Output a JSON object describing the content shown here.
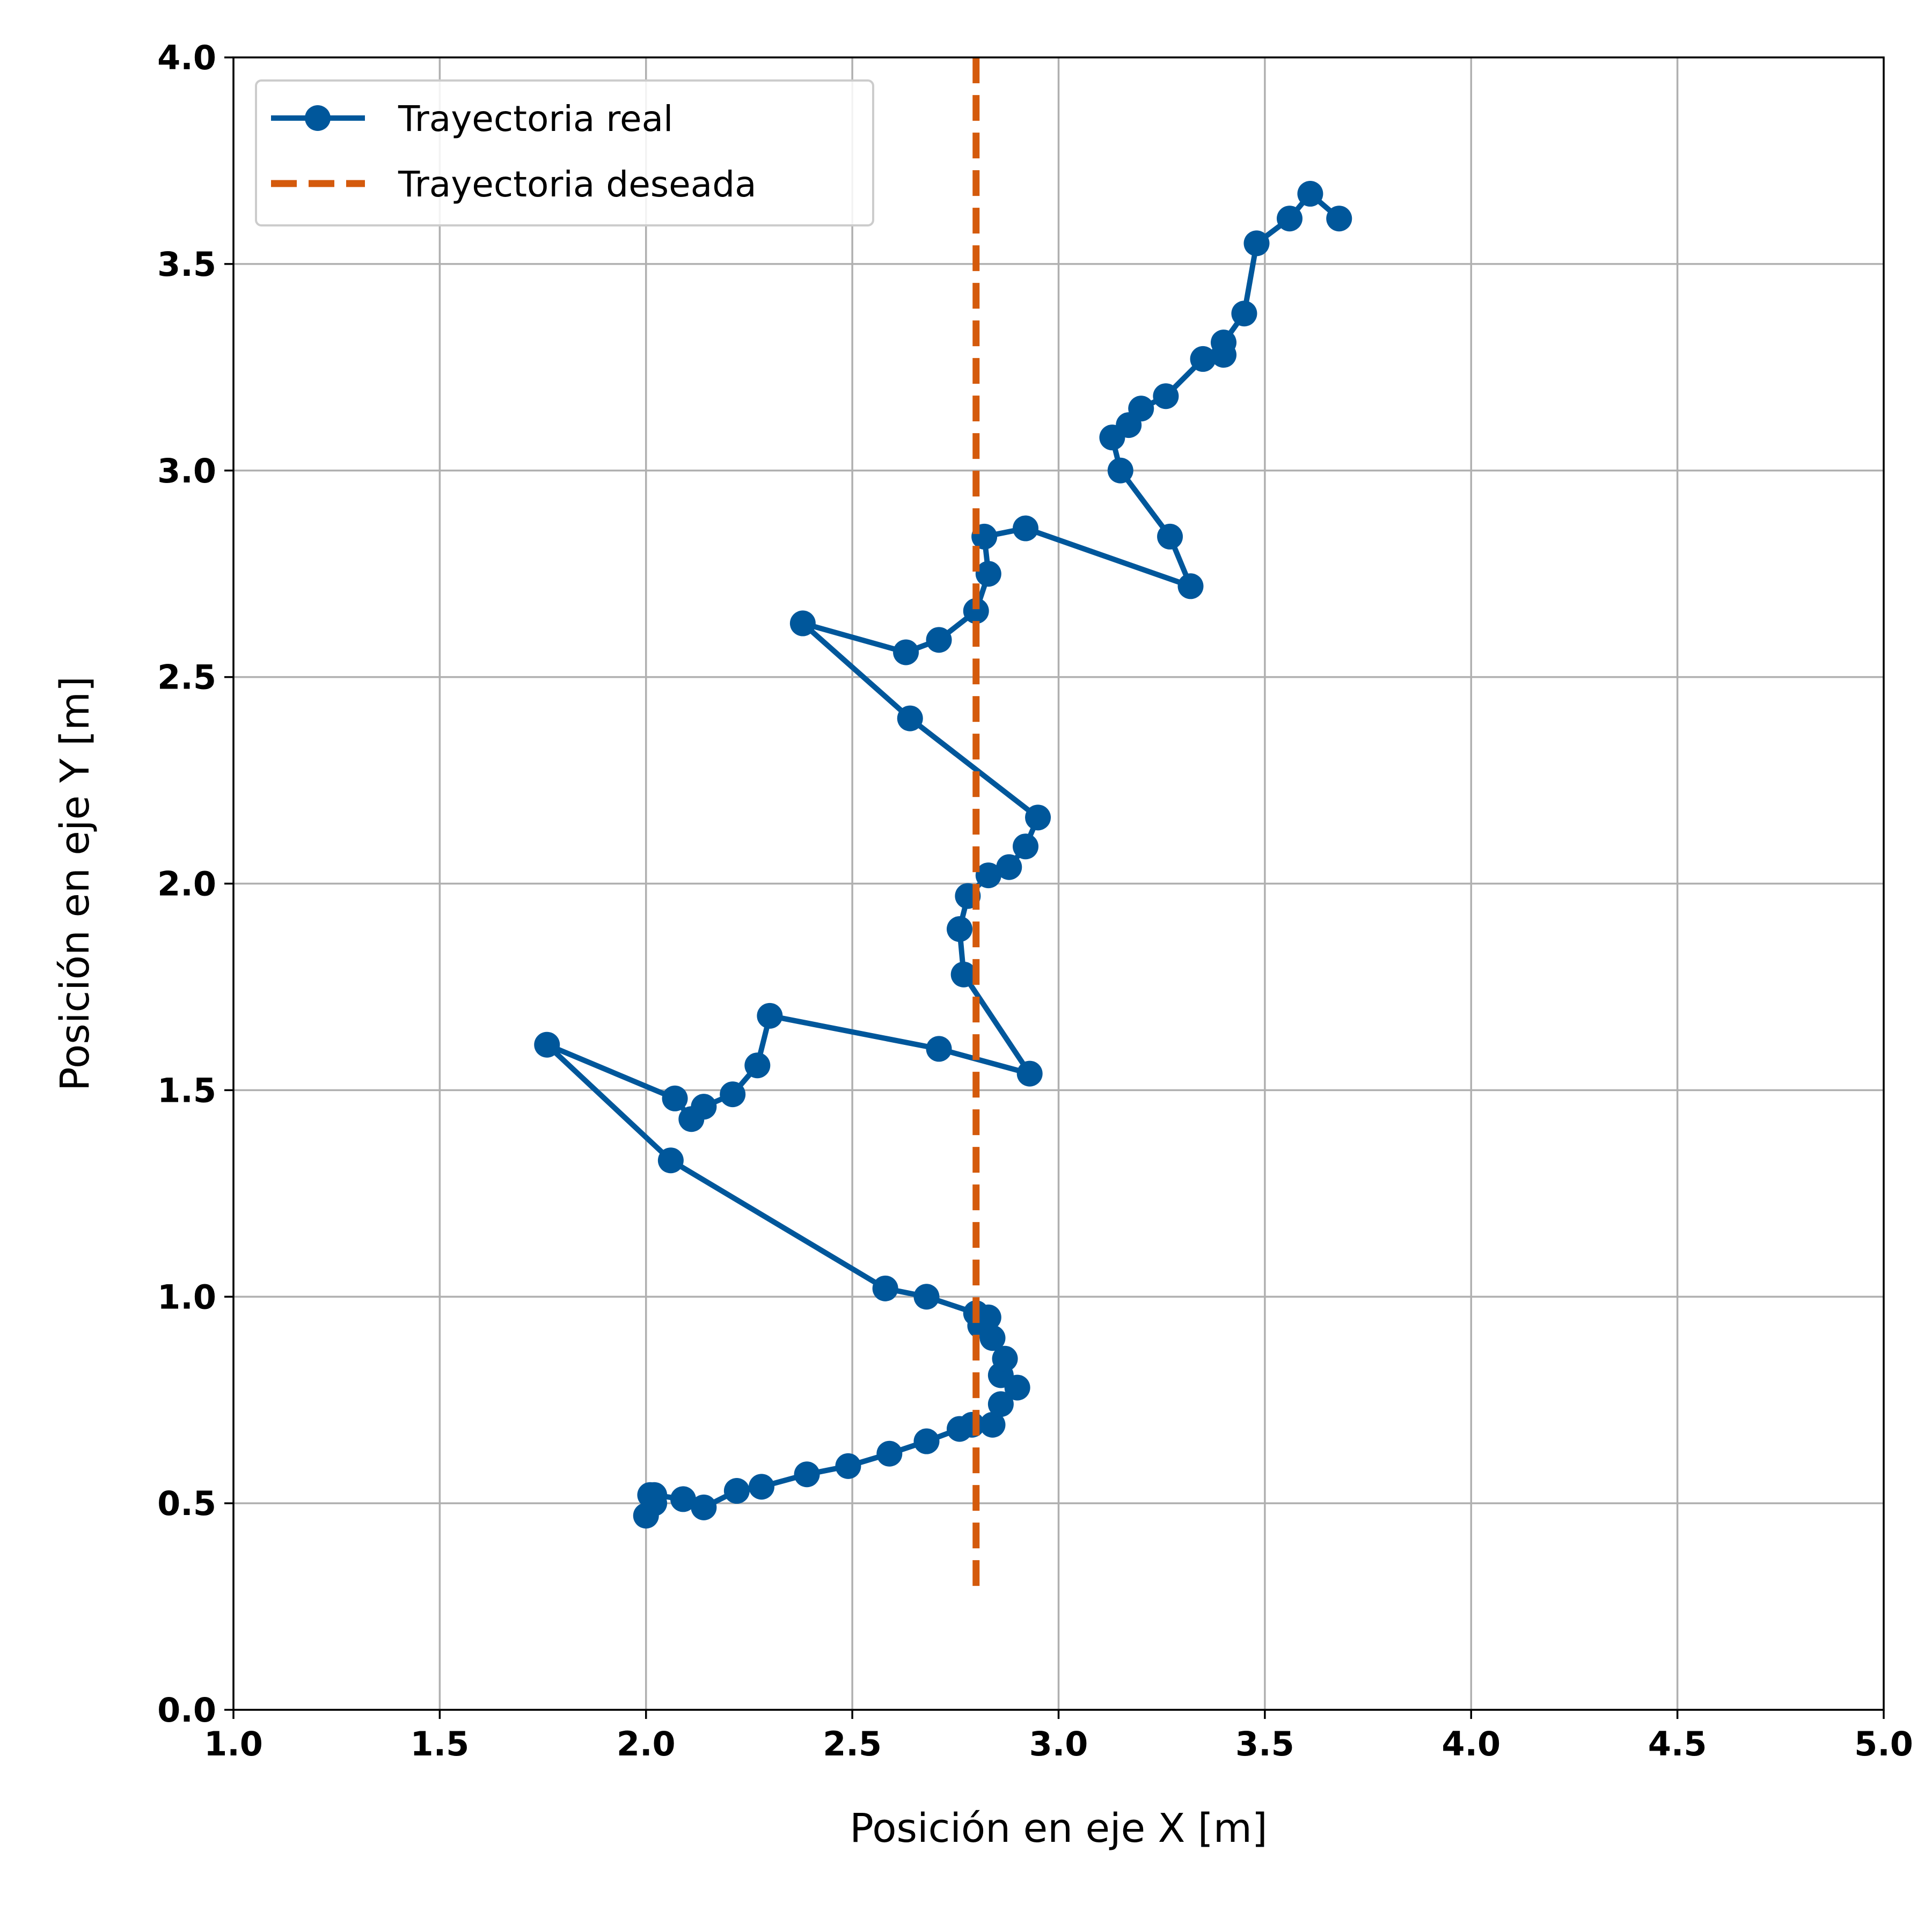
{
  "chart_data": {
    "type": "line",
    "xlabel": "Posición en eje X [m]",
    "ylabel": "Posición en eje Y [m]",
    "xlim": [
      1.0,
      5.0
    ],
    "ylim": [
      0.0,
      4.0
    ],
    "xticks": [
      "1.0",
      "1.5",
      "2.0",
      "2.5",
      "3.0",
      "3.5",
      "4.0",
      "4.5",
      "5.0"
    ],
    "yticks": [
      "0.0",
      "0.5",
      "1.0",
      "1.5",
      "2.0",
      "2.5",
      "3.0",
      "3.5",
      "4.0"
    ],
    "grid": true,
    "legend_position": "top-left",
    "series": [
      {
        "name": "Trayectoria real",
        "style": "solid-with-markers",
        "color": "#00579b",
        "x": [
          2.0,
          2.02,
          2.01,
          2.02,
          2.09,
          2.14,
          2.22,
          2.28,
          2.39,
          2.49,
          2.59,
          2.68,
          2.76,
          2.79,
          2.84,
          2.86,
          2.9,
          2.86,
          2.87,
          2.84,
          2.81,
          2.83,
          2.8,
          2.68,
          2.58,
          2.06,
          1.76,
          2.07,
          2.11,
          2.14,
          2.21,
          2.27,
          2.3,
          2.71,
          2.93,
          2.77,
          2.76,
          2.78,
          2.83,
          2.88,
          2.92,
          2.95,
          2.64,
          2.38,
          2.63,
          2.71,
          2.8,
          2.83,
          2.82,
          2.92,
          3.32,
          3.27,
          3.15,
          3.13,
          3.17,
          3.2,
          3.26,
          3.35,
          3.4,
          3.4,
          3.45,
          3.48,
          3.56,
          3.61,
          3.68
        ],
        "y": [
          0.47,
          0.5,
          0.52,
          0.52,
          0.51,
          0.49,
          0.53,
          0.54,
          0.57,
          0.59,
          0.62,
          0.65,
          0.68,
          0.69,
          0.69,
          0.74,
          0.78,
          0.81,
          0.85,
          0.9,
          0.93,
          0.95,
          0.96,
          1.0,
          1.02,
          1.33,
          1.61,
          1.48,
          1.43,
          1.46,
          1.49,
          1.56,
          1.68,
          1.6,
          1.54,
          1.78,
          1.89,
          1.97,
          2.02,
          2.04,
          2.09,
          2.16,
          2.4,
          2.63,
          2.56,
          2.59,
          2.66,
          2.75,
          2.84,
          2.86,
          2.72,
          2.84,
          3.0,
          3.08,
          3.11,
          3.15,
          3.18,
          3.27,
          3.28,
          3.31,
          3.38,
          3.55,
          3.61,
          3.67,
          3.61
        ]
      },
      {
        "name": "Trayectoria deseada",
        "style": "dashed",
        "color": "#d45a0c",
        "x": [
          2.8,
          2.8
        ],
        "y": [
          0.3,
          4.0
        ]
      }
    ]
  }
}
